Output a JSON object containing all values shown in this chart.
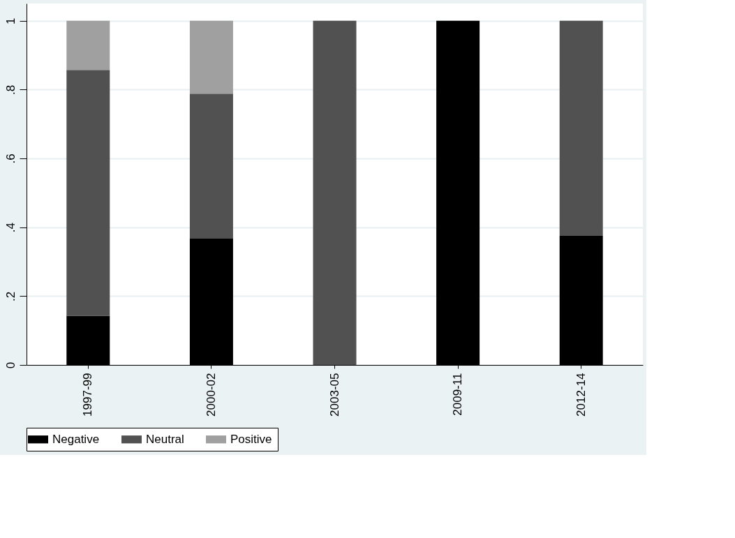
{
  "chart_data": {
    "type": "bar",
    "stacked": true,
    "categories": [
      "1997-99",
      "2000-02",
      "2003-05",
      "2009-11",
      "2012-14"
    ],
    "series": [
      {
        "name": "Negative",
        "color": "#000000",
        "values": [
          0.143,
          0.367,
          0,
          1,
          0.375
        ]
      },
      {
        "name": "Neutral",
        "color": "#515151",
        "values": [
          0.714,
          0.421,
          1,
          0,
          0.625
        ]
      },
      {
        "name": "Positive",
        "color": "#a0a0a0",
        "values": [
          0.143,
          0.212,
          0,
          0,
          0
        ]
      }
    ],
    "ylim": [
      0,
      1.05
    ],
    "yticks": [
      0,
      {
        "value": 0.2,
        "label": ".2"
      },
      {
        "value": 0.4,
        "label": ".4"
      },
      {
        "value": 0.6,
        "label": ".6"
      },
      {
        "value": 0.8,
        "label": ".8"
      },
      1
    ],
    "grid": "y",
    "legend": "bottom"
  }
}
